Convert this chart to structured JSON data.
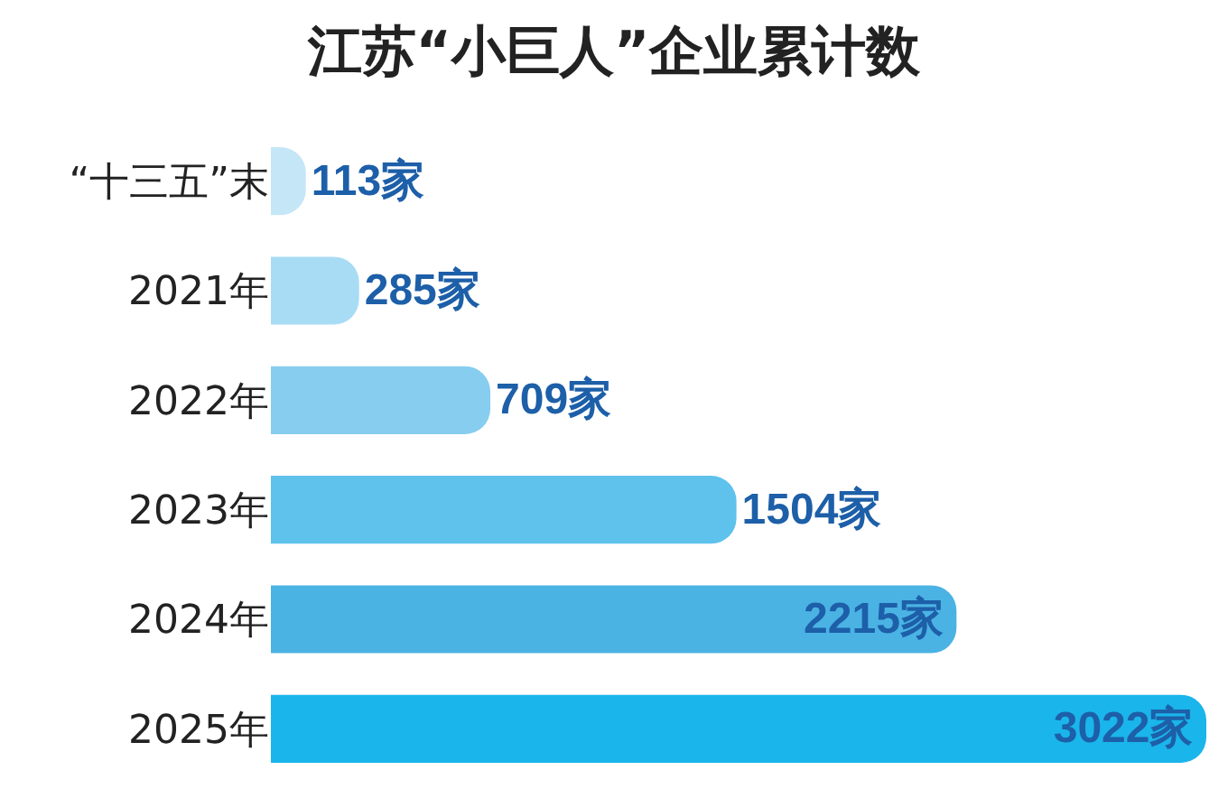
{
  "chart_data": {
    "type": "bar",
    "title": "江苏“小巨人”企业累计数",
    "orientation": "horizontal",
    "categories": [
      "“十三五”末",
      "2021年",
      "2022年",
      "2023年",
      "2024年",
      "2025年"
    ],
    "values": [
      113,
      285,
      709,
      1504,
      2215,
      3022
    ],
    "colors": [
      "#c5e6f7",
      "#a8dcf4",
      "#86cdef",
      "#5ec2ec",
      "#4ab3e4",
      "#1ab5ea"
    ],
    "value_labels": [
      "113家",
      "285家",
      "709家",
      "1504家",
      "2215家",
      "3022家"
    ]
  }
}
